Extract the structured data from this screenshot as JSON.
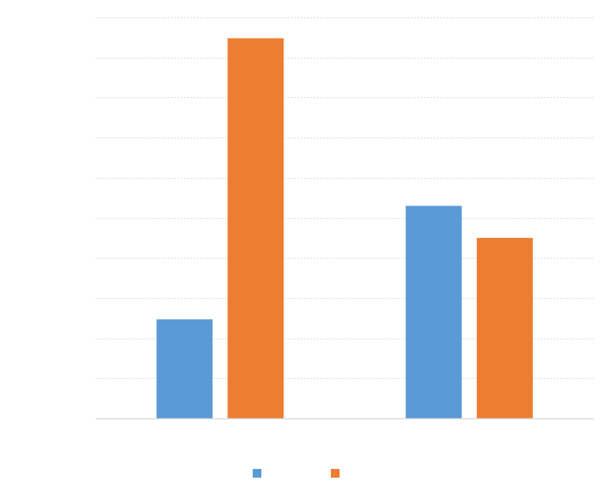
{
  "chart_data": {
    "type": "bar",
    "categories": [
      "",
      ""
    ],
    "series": [
      {
        "color": "#5B9BD5",
        "values": [
          2.47,
          5.3
        ]
      },
      {
        "color": "#ED7D31",
        "values": [
          9.48,
          4.5
        ]
      }
    ],
    "ylim": [
      0,
      10
    ],
    "y_grid_step": 1,
    "grid": true,
    "legend": {
      "placement": "bottom"
    },
    "gridline_color": "#D9D9D9",
    "axis_color": "#D9D9D9"
  }
}
